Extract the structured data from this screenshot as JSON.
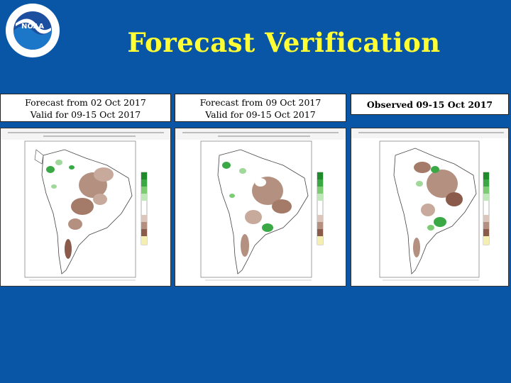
{
  "title": "Forecast Verification",
  "panels": [
    {
      "caption_line1": "Forecast from 02 Oct 2017",
      "caption_line2": "Valid for 09-15 Oct 2017"
    },
    {
      "caption_line1": "Forecast from 09 Oct 2017",
      "caption_line2": "Valid for 09-15 Oct 2017"
    },
    {
      "caption_line1": "Observed 09-15 Oct 2017"
    }
  ],
  "logo_text": "NOAA",
  "colors": {
    "background": "#0a56a6",
    "title": "#ffff33",
    "wet": "#2e9e3a",
    "dry": "#8a5a4a"
  }
}
